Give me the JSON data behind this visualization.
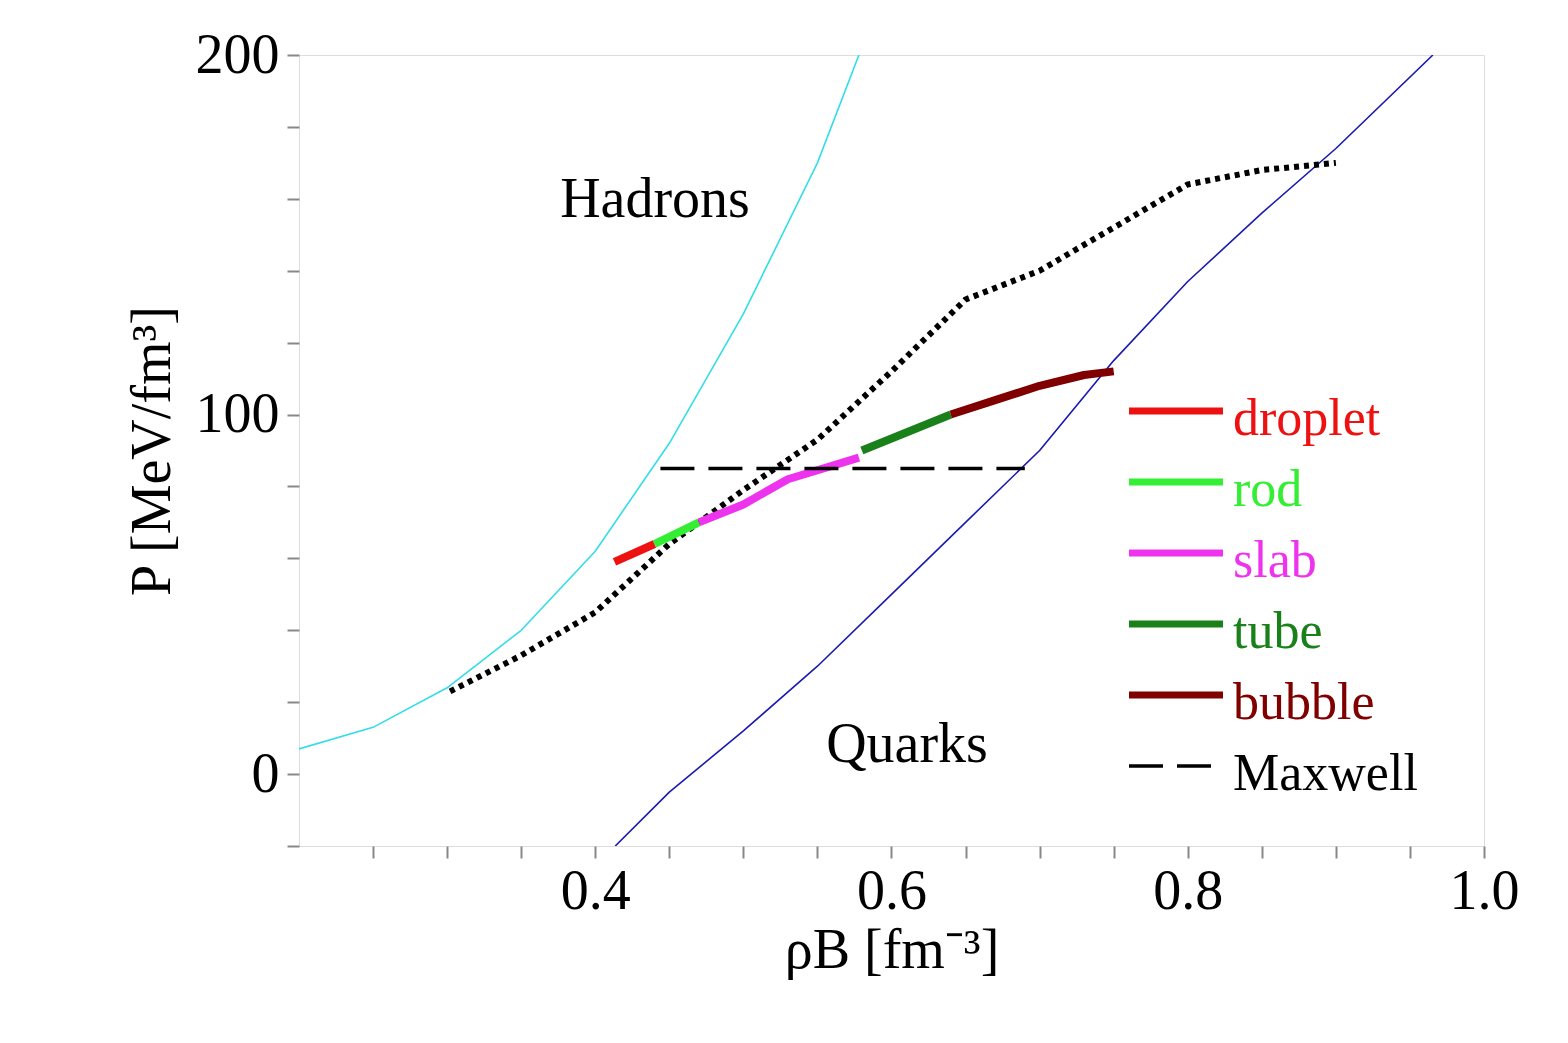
{
  "chart_data": {
    "type": "line",
    "xlabel": "ρB [fm⁻³]",
    "ylabel": "P [MeV/fm³]",
    "xlim": [
      0.2,
      1.0
    ],
    "ylim": [
      -20,
      200
    ],
    "xticks": [
      {
        "value": 0.25,
        "label": null
      },
      {
        "value": 0.3,
        "label": null
      },
      {
        "value": 0.35,
        "label": null
      },
      "0.4",
      {
        "value": 0.45,
        "label": null
      },
      {
        "value": 0.5,
        "label": null
      },
      {
        "value": 0.55,
        "label": null
      },
      {
        "value": 0.6,
        "label": "0.6"
      },
      {
        "value": 0.65,
        "label": null
      },
      {
        "value": 0.7,
        "label": null
      },
      {
        "value": 0.75,
        "label": null
      },
      {
        "value": 0.8,
        "label": "0.8"
      },
      {
        "value": 0.85,
        "label": null
      },
      {
        "value": 0.9,
        "label": null
      },
      {
        "value": 0.95,
        "label": null
      },
      {
        "value": 1.0,
        "label": "1.0"
      }
    ],
    "yticks": [
      {
        "value": -20,
        "label": null
      },
      0,
      {
        "value": 20,
        "label": null
      },
      {
        "value": 40,
        "label": null
      },
      {
        "value": 60,
        "label": null
      },
      {
        "value": 80,
        "label": null
      },
      100,
      {
        "value": 120,
        "label": null
      },
      {
        "value": 140,
        "label": null
      },
      {
        "value": 160,
        "label": null
      },
      {
        "value": 180,
        "label": null
      },
      200
    ],
    "annotations": [
      "Hadrons",
      "Quarks"
    ],
    "grid": false,
    "legend": "bottom right",
    "marker": "none",
    "series": [
      {
        "color": "#33dde8",
        "line_style": "solid",
        "x": [
          0.2,
          0.25,
          0.3,
          0.35,
          0.4,
          0.45,
          0.5,
          0.55,
          0.578
        ],
        "values": [
          7,
          13,
          24,
          40,
          62,
          92,
          128,
          170,
          200
        ]
      },
      {
        "color": "#1a1ab0",
        "line_style": "solid",
        "x": [
          0.4135,
          0.45,
          0.5,
          0.55,
          0.6,
          0.65,
          0.7,
          0.75,
          0.8,
          0.85,
          0.9,
          0.9655
        ],
        "values": [
          -20,
          -5,
          12,
          30,
          50,
          70,
          90,
          115,
          137,
          156,
          174,
          200
        ]
      },
      {
        "color": "#000000",
        "line_style": "dotted",
        "x": [
          0.302,
          0.35,
          0.4,
          0.45,
          0.5,
          0.55,
          0.6,
          0.65,
          0.7,
          0.75,
          0.8,
          0.85,
          0.9
        ],
        "values": [
          23,
          33,
          45,
          64,
          79,
          93,
          112,
          132,
          140,
          152,
          164,
          168,
          170
        ]
      },
      {
        "name": "droplet",
        "color": "#ee1111",
        "line_style": "solid",
        "x": [
          0.413,
          0.44
        ],
        "values": [
          59,
          64
        ]
      },
      {
        "name": "rod",
        "color": "#33ee33",
        "line_style": "solid",
        "x": [
          0.44,
          0.47
        ],
        "values": [
          64,
          70
        ]
      },
      {
        "name": "slab",
        "color": "#ee33ee",
        "line_style": "solid",
        "x": [
          0.47,
          0.5,
          0.53,
          0.578
        ],
        "values": [
          70,
          75,
          82,
          88
        ]
      },
      {
        "name": "tube",
        "color": "#1a801a",
        "line_style": "solid",
        "x": [
          0.58,
          0.64
        ],
        "values": [
          90,
          100
        ]
      },
      {
        "name": "bubble",
        "color": "#800000",
        "line_style": "solid",
        "x": [
          0.64,
          0.67,
          0.7,
          0.73,
          0.75
        ],
        "values": [
          100,
          104,
          108,
          111,
          112
        ]
      },
      {
        "name": "Maxwell",
        "color": "#000000",
        "line_style": "dashed",
        "x": [
          0.444,
          0.69
        ],
        "values": [
          85,
          85
        ]
      }
    ]
  }
}
